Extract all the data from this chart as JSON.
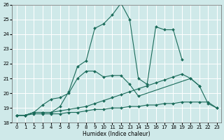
{
  "xlabel": "Humidex (Indice chaleur)",
  "xlim": [
    -0.5,
    23.5
  ],
  "ylim": [
    18,
    26
  ],
  "xticks": [
    0,
    1,
    2,
    3,
    4,
    5,
    6,
    7,
    8,
    9,
    10,
    11,
    12,
    13,
    14,
    15,
    16,
    17,
    18,
    19,
    20,
    21,
    22,
    23
  ],
  "yticks": [
    18,
    19,
    20,
    21,
    22,
    23,
    24,
    25,
    26
  ],
  "bg_color": "#cfe9e9",
  "line_color": "#1a6b5a",
  "grid_color": "#ffffff",
  "lines": [
    {
      "x": [
        0,
        1,
        2,
        3,
        4,
        5,
        6,
        7,
        8,
        9,
        10,
        11,
        12,
        13,
        14,
        15,
        16,
        17,
        18,
        19
      ],
      "y": [
        18.5,
        18.5,
        18.7,
        18.7,
        18.7,
        19.1,
        20.1,
        21.8,
        22.2,
        24.4,
        24.7,
        25.3,
        26.1,
        25.0,
        21.0,
        20.6,
        24.5,
        24.3,
        24.3,
        22.3
      ]
    },
    {
      "x": [
        0,
        1,
        2,
        3,
        4,
        5,
        6,
        7,
        8,
        9,
        10,
        11,
        12,
        13,
        14,
        20,
        21
      ],
      "y": [
        18.5,
        18.5,
        18.7,
        19.2,
        19.6,
        19.7,
        20.0,
        21.0,
        21.5,
        21.5,
        21.1,
        21.2,
        21.2,
        20.6,
        19.8,
        21.0,
        20.5
      ]
    },
    {
      "x": [
        0,
        1,
        2,
        3,
        4,
        5,
        6,
        7,
        8,
        9,
        10,
        11,
        12,
        13,
        14,
        15,
        16,
        17,
        18,
        19,
        20,
        21,
        22,
        23
      ],
      "y": [
        18.5,
        18.5,
        18.7,
        18.7,
        18.7,
        18.8,
        18.9,
        19.0,
        19.1,
        19.3,
        19.5,
        19.7,
        19.9,
        20.1,
        20.3,
        20.5,
        20.7,
        20.9,
        21.1,
        21.3,
        21.0,
        20.5,
        19.3,
        19.0
      ]
    },
    {
      "x": [
        0,
        1,
        2,
        3,
        4,
        5,
        6,
        7,
        8,
        9,
        10,
        11,
        12,
        13,
        14,
        15,
        16,
        17,
        18,
        19,
        20,
        21,
        22,
        23
      ],
      "y": [
        18.5,
        18.5,
        18.6,
        18.6,
        18.6,
        18.6,
        18.7,
        18.7,
        18.8,
        18.9,
        18.9,
        19.0,
        19.0,
        19.1,
        19.1,
        19.2,
        19.2,
        19.3,
        19.3,
        19.4,
        19.4,
        19.4,
        19.4,
        19.0
      ]
    }
  ]
}
